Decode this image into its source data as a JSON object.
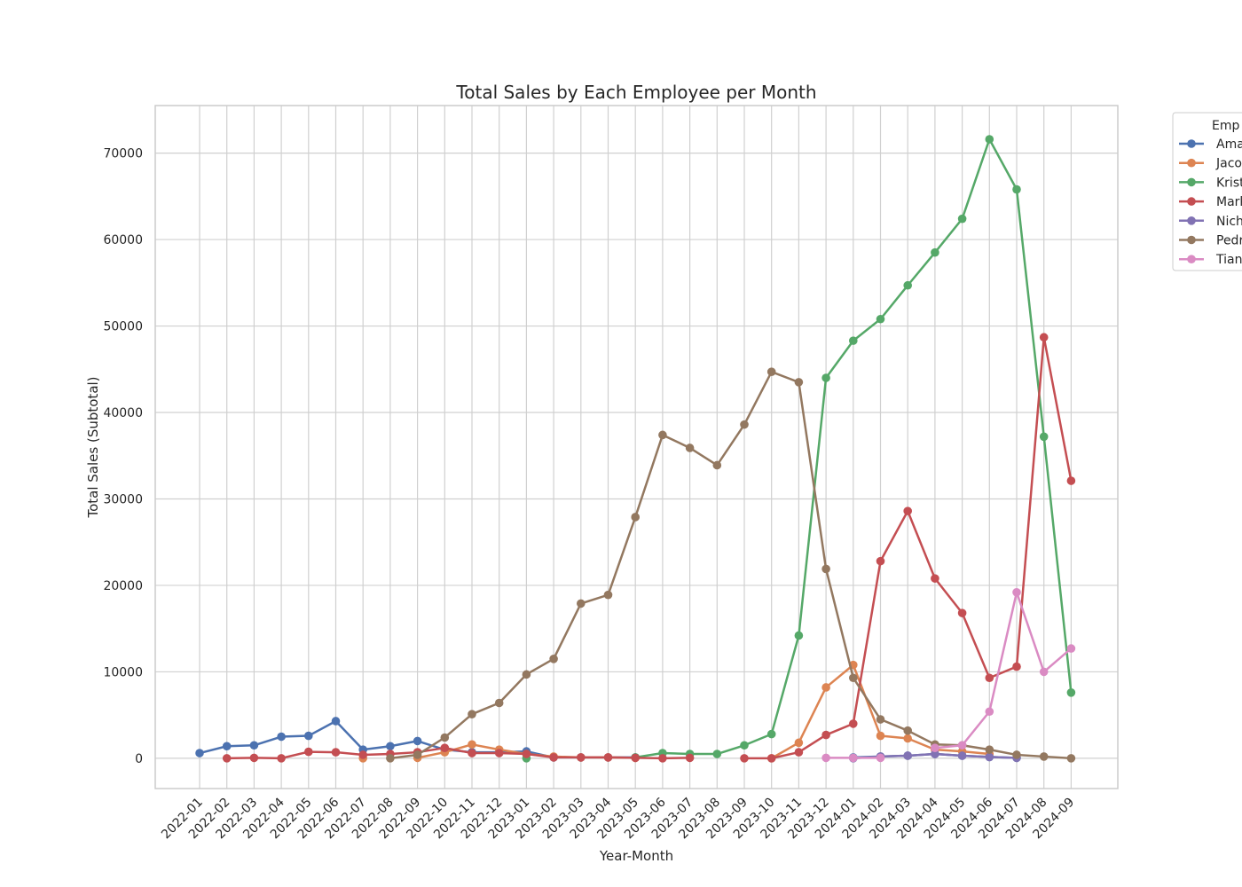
{
  "chart_data": {
    "type": "line",
    "title": "Total Sales by Each Employee per Month",
    "xlabel": "Year-Month",
    "ylabel": "Total Sales (Subtotal)",
    "ylim": [
      -3500,
      75500
    ],
    "yticks": [
      0,
      10000,
      20000,
      30000,
      40000,
      50000,
      60000,
      70000
    ],
    "grid": true,
    "legend": {
      "title": "Emp",
      "placement": "right-outside-top",
      "clipped": true
    },
    "categories": [
      "2022-01",
      "2022-02",
      "2022-03",
      "2022-04",
      "2022-05",
      "2022-06",
      "2022-07",
      "2022-08",
      "2022-09",
      "2022-10",
      "2022-11",
      "2022-12",
      "2023-01",
      "2023-02",
      "2023-03",
      "2023-04",
      "2023-05",
      "2023-06",
      "2023-07",
      "2023-08",
      "2023-09",
      "2023-10",
      "2023-11",
      "2023-12",
      "2024-01",
      "2024-02",
      "2024-03",
      "2024-04",
      "2024-05",
      "2024-06",
      "2024-07",
      "2024-08",
      "2024-09"
    ],
    "series": [
      {
        "name": "Ama",
        "color": "#4c72b0",
        "values": [
          600,
          1400,
          1500,
          2500,
          2600,
          4300,
          1000,
          1400,
          2000,
          1000,
          700,
          700,
          800,
          100,
          100,
          100,
          100,
          null,
          null,
          null,
          null,
          null,
          null,
          null,
          100,
          200,
          300,
          500,
          300,
          150,
          50,
          null,
          null
        ]
      },
      {
        "name": "Jaco",
        "color": "#dd8452",
        "values": [
          null,
          null,
          null,
          null,
          null,
          null,
          0,
          null,
          50,
          700,
          1600,
          1000,
          500,
          200,
          100,
          100,
          50,
          null,
          null,
          null,
          null,
          0,
          1800,
          8200,
          10800,
          2600,
          2300,
          1000,
          800,
          500,
          null,
          null,
          null
        ]
      },
      {
        "name": "Krist",
        "color": "#55a868",
        "values": [
          null,
          null,
          null,
          null,
          null,
          null,
          null,
          null,
          null,
          null,
          null,
          null,
          0,
          null,
          null,
          null,
          100,
          600,
          500,
          500,
          1500,
          2800,
          14200,
          44000,
          48300,
          50800,
          54700,
          58500,
          62400,
          71600,
          65800,
          37200,
          7600
        ]
      },
      {
        "name": "Mark",
        "color": "#c44e52",
        "values": [
          null,
          0,
          50,
          0,
          750,
          700,
          400,
          500,
          700,
          1200,
          600,
          600,
          500,
          100,
          100,
          100,
          50,
          0,
          50,
          null,
          0,
          0,
          700,
          2700,
          4000,
          22800,
          28600,
          20800,
          16800,
          9300,
          10600,
          48700,
          32100
        ]
      },
      {
        "name": "Nich",
        "color": "#8172b3",
        "values": [
          null,
          null,
          null,
          null,
          null,
          null,
          null,
          null,
          null,
          null,
          null,
          null,
          null,
          null,
          null,
          null,
          null,
          null,
          null,
          null,
          null,
          null,
          null,
          null,
          0,
          200,
          300,
          500,
          300,
          150,
          50,
          null,
          null
        ]
      },
      {
        "name": "Pedr",
        "color": "#937860",
        "values": [
          null,
          null,
          null,
          null,
          null,
          null,
          null,
          0,
          400,
          2400,
          5100,
          6400,
          9700,
          11500,
          17900,
          18900,
          27900,
          37400,
          35900,
          33900,
          38600,
          44700,
          43500,
          21900,
          9300,
          4500,
          3200,
          1600,
          1500,
          1000,
          400,
          200,
          0
        ]
      },
      {
        "name": "Tian",
        "color": "#da8bc3",
        "values": [
          null,
          null,
          null,
          null,
          null,
          null,
          null,
          null,
          null,
          null,
          null,
          null,
          null,
          null,
          null,
          null,
          null,
          null,
          null,
          null,
          null,
          null,
          null,
          50,
          50,
          50,
          null,
          1200,
          1500,
          5400,
          19200,
          10000,
          12700
        ]
      }
    ]
  }
}
